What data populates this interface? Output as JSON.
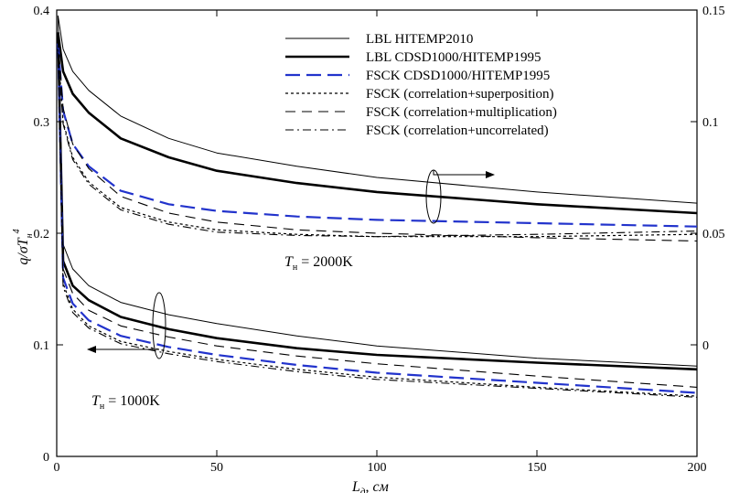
{
  "chart_data": {
    "type": "line",
    "x_axis": {
      "ticks": [
        0,
        50,
        100,
        150,
        200
      ],
      "range": [
        0,
        200
      ]
    },
    "y_axis_left": {
      "ticks": [
        0,
        0.1,
        0.2,
        0.3,
        0.4
      ],
      "range": [
        0,
        0.4
      ]
    },
    "y_axis_right": {
      "ticks": [
        0,
        0.05,
        0.1,
        0.15
      ],
      "range": [
        -0.05,
        0.15
      ]
    },
    "legend": {
      "placement": "top-right"
    },
    "annotations": {
      "t2000": {
        "prefix": "T",
        "sub": "н",
        "suffix": " = 2000K"
      },
      "t1000": {
        "prefix": "T",
        "sub": "н",
        "suffix": " = 1000K"
      }
    },
    "series": [
      {
        "name": "LBL HITEMP2010",
        "color": "#000000",
        "style": "thin",
        "x": [
          0.4,
          2,
          5,
          10,
          20,
          35,
          50,
          75,
          100,
          150,
          200
        ],
        "groups": [
          [
            0.395,
            0.365,
            0.345,
            0.328,
            0.305,
            0.285,
            0.272,
            0.26,
            0.25,
            0.237,
            0.227
          ],
          [
            0.395,
            0.19,
            0.168,
            0.153,
            0.138,
            0.127,
            0.119,
            0.108,
            0.099,
            0.088,
            0.081
          ]
        ]
      },
      {
        "name": "LBL CDSD1000/HITEMP1995",
        "color": "#000000",
        "style": "thick",
        "x": [
          0.4,
          2,
          5,
          10,
          20,
          35,
          50,
          75,
          100,
          150,
          200
        ],
        "groups": [
          [
            0.38,
            0.345,
            0.325,
            0.308,
            0.285,
            0.268,
            0.256,
            0.245,
            0.237,
            0.226,
            0.218
          ],
          [
            0.38,
            0.175,
            0.153,
            0.14,
            0.125,
            0.114,
            0.106,
            0.097,
            0.091,
            0.084,
            0.078
          ]
        ]
      },
      {
        "name": "FSCK CDSD1000/HITEMP1995",
        "color": "#2233cc",
        "style": "dashed",
        "x": [
          0.4,
          2,
          5,
          10,
          20,
          35,
          50,
          75,
          100,
          150,
          200
        ],
        "groups": [
          [
            0.37,
            0.31,
            0.28,
            0.26,
            0.238,
            0.226,
            0.22,
            0.215,
            0.212,
            0.209,
            0.206
          ],
          [
            0.37,
            0.16,
            0.137,
            0.122,
            0.108,
            0.098,
            0.091,
            0.082,
            0.075,
            0.066,
            0.057
          ]
        ]
      },
      {
        "name": "FSCK (correlation+superposition)",
        "color": "#000000",
        "style": "dotted",
        "x": [
          0.4,
          2,
          5,
          10,
          20,
          35,
          50,
          75,
          100,
          150,
          200
        ],
        "groups": [
          [
            0.365,
            0.3,
            0.268,
            0.246,
            0.223,
            0.21,
            0.203,
            0.199,
            0.197,
            0.197,
            0.199
          ],
          [
            0.365,
            0.155,
            0.132,
            0.117,
            0.103,
            0.094,
            0.087,
            0.078,
            0.071,
            0.062,
            0.054
          ]
        ]
      },
      {
        "name": "FSCK (correlation+multiplication)",
        "color": "#000000",
        "style": "longdash",
        "x": [
          0.4,
          2,
          5,
          10,
          20,
          35,
          50,
          75,
          100,
          150,
          200
        ],
        "groups": [
          [
            0.375,
            0.312,
            0.28,
            0.258,
            0.233,
            0.218,
            0.21,
            0.203,
            0.2,
            0.196,
            0.193
          ],
          [
            0.375,
            0.168,
            0.146,
            0.131,
            0.117,
            0.107,
            0.099,
            0.09,
            0.083,
            0.072,
            0.062
          ]
        ]
      },
      {
        "name": "FSCK (correlation+uncorrelated)",
        "color": "#000000",
        "style": "dashdot",
        "x": [
          0.4,
          2,
          5,
          10,
          20,
          35,
          50,
          75,
          100,
          150,
          200
        ],
        "groups": [
          [
            0.362,
            0.298,
            0.266,
            0.244,
            0.221,
            0.208,
            0.201,
            0.198,
            0.197,
            0.199,
            0.202
          ],
          [
            0.362,
            0.152,
            0.129,
            0.115,
            0.101,
            0.092,
            0.085,
            0.076,
            0.069,
            0.061,
            0.053
          ]
        ]
      }
    ]
  }
}
